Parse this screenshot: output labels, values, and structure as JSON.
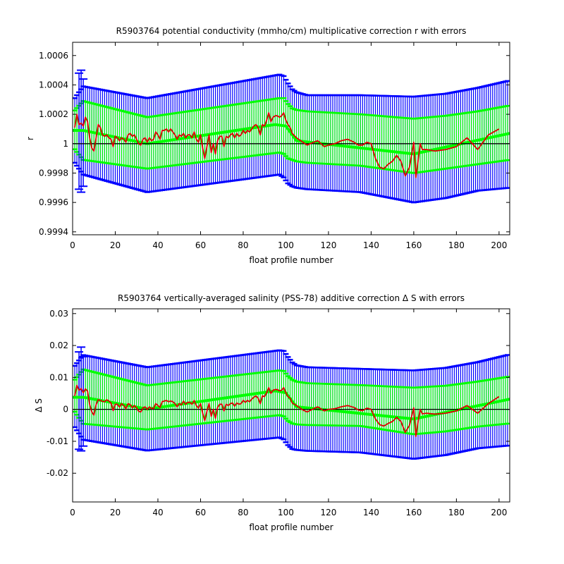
{
  "chart_data": [
    {
      "type": "line",
      "title": "R5903764 potential conductivity (mmho/cm) multiplicative correction r with errors",
      "xlabel": "float profile number",
      "ylabel": "r",
      "xlim": [
        0,
        205
      ],
      "ylim": [
        0.99938,
        1.00069
      ],
      "xticks": [
        0,
        20,
        40,
        60,
        80,
        100,
        120,
        140,
        160,
        180,
        200
      ],
      "xtick_labels": [
        "0",
        "20",
        "40",
        "60",
        "80",
        "100",
        "120",
        "140",
        "160",
        "180",
        "200"
      ],
      "yticks": [
        0.9994,
        0.9996,
        0.9998,
        1.0,
        1.0002,
        1.0004,
        1.0006
      ],
      "ytick_labels": [
        "0.9994",
        "0.9996",
        "0.9998",
        "1",
        "1.0002",
        "1.0004",
        "1.0006"
      ],
      "reference_line": 1.0,
      "grid": false,
      "colors": {
        "fit": "#00ff00",
        "outer_error": "#0000ff",
        "inner_error": "#00ff00",
        "correction": "#dd0000",
        "reference": "#000000"
      },
      "series": [
        {
          "role": "fit",
          "x": [
            0,
            5,
            35,
            95,
            100,
            105,
            160,
            205
          ],
          "y": [
            1.00009,
            1.00009,
            1.0,
            1.00013,
            1.00012,
            1.00002,
            0.99993,
            1.00007
          ]
        },
        {
          "role": "outer_error",
          "x": [
            0,
            5,
            35,
            97,
            99,
            101,
            103,
            105,
            110,
            135,
            160,
            175,
            190,
            205
          ],
          "upper": [
            1.00029,
            1.00039,
            1.00031,
            1.00047,
            1.00046,
            1.00041,
            1.00037,
            1.00035,
            1.00033,
            1.00033,
            1.00032,
            1.00034,
            1.00038,
            1.00043
          ],
          "lower": [
            0.99989,
            0.99979,
            0.99967,
            0.99979,
            0.99977,
            0.99973,
            0.99971,
            0.9997,
            0.99969,
            0.99967,
            0.9996,
            0.99963,
            0.99968,
            0.9997
          ]
        },
        {
          "role": "inner_error",
          "x": [
            0,
            5,
            35,
            97,
            99,
            101,
            103,
            105,
            110,
            135,
            160,
            175,
            190,
            205
          ],
          "upper": [
            1.00021,
            1.00029,
            1.00018,
            1.00031,
            1.00031,
            1.00027,
            1.00024,
            1.00023,
            1.00022,
            1.0002,
            1.00017,
            1.00019,
            1.00022,
            1.00026
          ],
          "lower": [
            0.99998,
            0.99989,
            0.99983,
            0.99994,
            0.99993,
            0.9999,
            0.99989,
            0.99988,
            0.99987,
            0.99985,
            0.9998,
            0.99983,
            0.99986,
            0.99989
          ]
        },
        {
          "role": "endpoint_errorbars",
          "x": [
            3,
            4,
            5
          ],
          "upper": [
            1.00048,
            1.0005,
            1.00044
          ],
          "lower": [
            0.99969,
            0.99967,
            0.99971
          ]
        },
        {
          "role": "correction",
          "x": [
            1,
            2,
            3,
            4,
            5,
            6,
            7,
            8,
            9,
            10,
            11,
            12,
            13,
            14,
            15,
            16,
            17,
            18,
            19,
            20,
            21,
            22,
            23,
            24,
            25,
            26,
            27,
            28,
            29,
            30,
            31,
            32,
            33,
            34,
            35,
            36,
            37,
            38,
            39,
            40,
            41,
            42,
            43,
            44,
            45,
            46,
            47,
            48,
            49,
            50,
            51,
            52,
            53,
            54,
            55,
            56,
            57,
            58,
            59,
            60,
            61,
            62,
            63,
            64,
            65,
            66,
            67,
            68,
            69,
            70,
            71,
            72,
            73,
            74,
            75,
            76,
            77,
            78,
            79,
            80,
            81,
            82,
            83,
            84,
            85,
            86,
            87,
            88,
            89,
            90,
            91,
            92,
            93,
            94,
            95,
            96,
            97,
            98,
            99,
            100,
            101,
            102,
            103,
            105,
            108,
            110,
            113,
            115,
            118,
            120,
            123,
            126,
            129,
            132,
            134,
            136,
            138,
            140,
            142,
            144,
            146,
            148,
            150,
            152,
            154,
            156,
            158,
            160,
            161,
            162,
            163,
            164,
            166,
            170,
            175,
            180,
            185,
            190,
            195,
            200
          ],
          "y": [
            1.00011,
            1.0002,
            1.00013,
            1.00014,
            1.00012,
            1.00018,
            1.00015,
            1.00004,
            0.99997,
            0.99995,
            1.00004,
            1.00013,
            1.00011,
            1.00006,
            1.00005,
            1.00006,
            1.00004,
            1.00003,
            0.99998,
            1.00005,
            1.00004,
            1.00002,
            1.00004,
            1.00003,
            1.00001,
            1.00006,
            1.00007,
            1.00005,
            1.00006,
            1.00003,
            1.0,
            0.99999,
            1.00003,
            1.00004,
            1.00001,
            1.00004,
            1.00002,
            1.00003,
            1.00008,
            1.00006,
            1.00003,
            1.00009,
            1.00009,
            1.0001,
            1.00008,
            1.0001,
            1.00008,
            1.00006,
            1.00003,
            1.00006,
            1.00005,
            1.00007,
            1.00004,
            1.00006,
            1.00006,
            1.00004,
            1.00008,
            1.00003,
            1.00001,
            1.00006,
            0.99997,
            0.9999,
            0.99998,
            1.00006,
            0.99994,
            1.0,
            0.99993,
            1.00002,
            1.00005,
            1.00005,
            0.99998,
            1.00005,
            1.00004,
            1.00006,
            1.00007,
            1.00004,
            1.00007,
            1.00005,
            1.00006,
            1.00009,
            1.00007,
            1.00009,
            1.00008,
            1.0001,
            1.00012,
            1.00013,
            1.00011,
            1.00006,
            1.00013,
            1.00012,
            1.00016,
            1.00021,
            1.00015,
            1.00018,
            1.00019,
            1.00019,
            1.00018,
            1.00019,
            1.00021,
            1.00016,
            1.00013,
            1.00011,
            1.00007,
            1.00004,
            1.00001,
            0.99999,
            1.00001,
            1.00002,
            0.99998,
            0.99999,
            1.0,
            1.00002,
            1.00003,
            1.00001,
            0.99999,
            0.99999,
            1.00001,
            1.0,
            0.9999,
            0.99984,
            0.99983,
            0.99986,
            0.99988,
            0.99992,
            0.99988,
            0.99978,
            0.99984,
            1.00001,
            0.99977,
            0.99988,
            1.0,
            0.99996,
            0.99996,
            0.99995,
            0.99996,
            0.99998,
            1.00004,
            0.99996,
            1.00006,
            1.0001
          ]
        }
      ]
    },
    {
      "type": "line",
      "title": "R5903764 vertically-averaged salinity (PSS-78) additive correction Δ S with errors",
      "xlabel": "float profile number",
      "ylabel": "Δ S",
      "xlim": [
        0,
        205
      ],
      "ylim": [
        -0.029,
        0.0315
      ],
      "xticks": [
        0,
        20,
        40,
        60,
        80,
        100,
        120,
        140,
        160,
        180,
        200
      ],
      "xtick_labels": [
        "0",
        "20",
        "40",
        "60",
        "80",
        "100",
        "120",
        "140",
        "160",
        "180",
        "200"
      ],
      "yticks": [
        -0.02,
        -0.01,
        0,
        0.01,
        0.02,
        0.03
      ],
      "ytick_labels": [
        "-0.02",
        "-0.01",
        "0",
        "0.01",
        "0.02",
        "0.03"
      ],
      "reference_line": 0,
      "grid": false,
      "colors": {
        "fit": "#00ff00",
        "outer_error": "#0000ff",
        "inner_error": "#00ff00",
        "correction": "#dd0000",
        "reference": "#000000"
      },
      "series": [
        {
          "role": "fit",
          "x": [
            0,
            5,
            35,
            95,
            100,
            105,
            160,
            205
          ],
          "y": [
            0.0038,
            0.0038,
            0.0001,
            0.0058,
            0.0052,
            0.0008,
            -0.003,
            0.0032
          ]
        },
        {
          "role": "outer_error",
          "x": [
            0,
            5,
            35,
            97,
            99,
            101,
            103,
            105,
            110,
            135,
            160,
            175,
            190,
            205
          ],
          "upper": [
            0.0128,
            0.017,
            0.0132,
            0.0185,
            0.0183,
            0.0164,
            0.0147,
            0.0138,
            0.0132,
            0.0127,
            0.0122,
            0.013,
            0.0148,
            0.0172
          ],
          "lower": [
            -0.0046,
            -0.0095,
            -0.0129,
            -0.0088,
            -0.0094,
            -0.0112,
            -0.0124,
            -0.0127,
            -0.013,
            -0.0135,
            -0.0155,
            -0.0143,
            -0.0122,
            -0.0113
          ]
        },
        {
          "role": "inner_error",
          "x": [
            0,
            5,
            35,
            97,
            99,
            101,
            103,
            105,
            110,
            135,
            160,
            175,
            190,
            205
          ],
          "upper": [
            0.0085,
            0.0125,
            0.0075,
            0.0122,
            0.012,
            0.0104,
            0.0093,
            0.0087,
            0.0082,
            0.0076,
            0.0068,
            0.0074,
            0.0087,
            0.0103
          ],
          "lower": [
            0.0002,
            -0.0045,
            -0.0063,
            -0.0018,
            -0.0022,
            -0.0036,
            -0.0044,
            -0.0047,
            -0.0049,
            -0.0052,
            -0.0078,
            -0.0069,
            -0.0054,
            -0.0044
          ]
        },
        {
          "role": "endpoint_errorbars",
          "x": [
            3,
            4,
            5
          ],
          "upper": [
            0.018,
            0.0195,
            0.0165
          ],
          "lower": [
            -0.0125,
            -0.013,
            -0.0115
          ]
        },
        {
          "role": "correction",
          "x": [
            1,
            2,
            3,
            4,
            5,
            6,
            7,
            8,
            9,
            10,
            11,
            12,
            13,
            14,
            15,
            16,
            17,
            18,
            19,
            20,
            21,
            22,
            23,
            24,
            25,
            26,
            27,
            28,
            29,
            30,
            31,
            32,
            33,
            34,
            35,
            36,
            37,
            38,
            39,
            40,
            41,
            42,
            43,
            44,
            45,
            46,
            47,
            48,
            49,
            50,
            51,
            52,
            53,
            54,
            55,
            56,
            57,
            58,
            59,
            60,
            61,
            62,
            63,
            64,
            65,
            66,
            67,
            68,
            69,
            70,
            71,
            72,
            73,
            74,
            75,
            76,
            77,
            78,
            79,
            80,
            81,
            82,
            83,
            84,
            85,
            86,
            87,
            88,
            89,
            90,
            91,
            92,
            93,
            94,
            95,
            96,
            97,
            98,
            99,
            100,
            101,
            102,
            103,
            105,
            108,
            110,
            113,
            115,
            118,
            120,
            123,
            126,
            129,
            132,
            134,
            136,
            138,
            140,
            142,
            144,
            146,
            148,
            150,
            152,
            154,
            156,
            158,
            160,
            161,
            162,
            163,
            164,
            166,
            170,
            175,
            180,
            185,
            190,
            195,
            200
          ],
          "y": [
            0.0042,
            0.0075,
            0.006,
            0.0065,
            0.0052,
            0.0064,
            0.0057,
            0.0015,
            -0.0008,
            -0.0018,
            0.0015,
            0.003,
            0.0028,
            0.0025,
            0.0024,
            0.003,
            0.0026,
            0.002,
            -0.0004,
            0.0016,
            0.0016,
            0.0007,
            0.0018,
            0.0012,
            0.0002,
            0.0018,
            0.0015,
            0.0005,
            0.0012,
            0.0005,
            -0.0006,
            -0.0008,
            0.0005,
            0.0008,
            0.0,
            0.0008,
            0.0003,
            0.0003,
            0.0018,
            0.0012,
            0.0006,
            0.0024,
            0.0026,
            0.0028,
            0.0024,
            0.0026,
            0.0024,
            0.0018,
            0.0008,
            0.0018,
            0.0014,
            0.0026,
            0.0016,
            0.0022,
            0.0022,
            0.0016,
            0.0028,
            0.0012,
            0.0004,
            0.0018,
            -0.0012,
            -0.0035,
            -0.0006,
            0.0018,
            -0.0022,
            0.0,
            -0.0028,
            0.0006,
            0.0016,
            0.0016,
            -0.0005,
            0.0016,
            0.0012,
            0.0018,
            0.002,
            0.001,
            0.002,
            0.0016,
            0.0018,
            0.0028,
            0.0022,
            0.0028,
            0.0024,
            0.0032,
            0.0038,
            0.0042,
            0.0035,
            0.0018,
            0.0042,
            0.004,
            0.0052,
            0.0068,
            0.005,
            0.006,
            0.0062,
            0.0062,
            0.0058,
            0.006,
            0.0068,
            0.0052,
            0.004,
            0.0035,
            0.002,
            0.0012,
            -0.0002,
            -0.0008,
            0.0002,
            0.0008,
            -0.0005,
            0.0,
            0.0002,
            0.0008,
            0.0012,
            0.0006,
            -0.0002,
            -0.0004,
            0.0004,
            0.0,
            -0.003,
            -0.0048,
            -0.0052,
            -0.0044,
            -0.0038,
            -0.0025,
            -0.0038,
            -0.0072,
            -0.005,
            0.0005,
            -0.0085,
            -0.004,
            0.0,
            -0.0014,
            -0.0012,
            -0.0015,
            -0.0012,
            -0.0005,
            0.0012,
            -0.0012,
            0.0018,
            0.004
          ]
        }
      ]
    }
  ]
}
